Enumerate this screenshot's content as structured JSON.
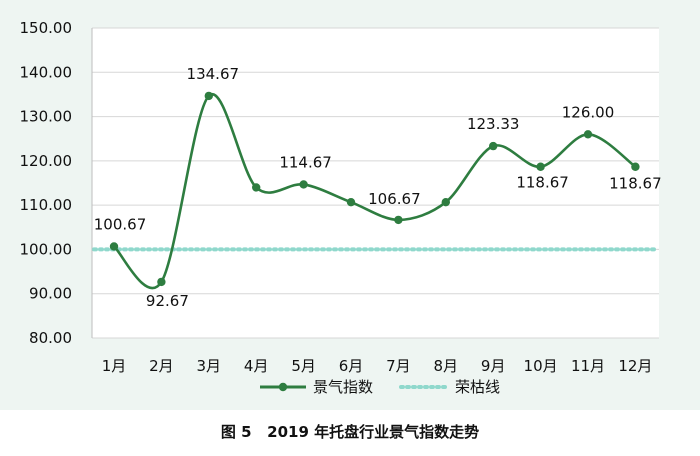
{
  "caption": "图 5   2019 年托盘行业景气指数走势",
  "colors": {
    "panel_background": "#eef5f2",
    "plot_background": "#ffffff",
    "grid": "#d7d7d7",
    "series_line": "#2e7d40",
    "prosperity_line": "#8fd8cc",
    "text": "#111111"
  },
  "chart_data": {
    "type": "line",
    "categories": [
      "1月",
      "2月",
      "3月",
      "4月",
      "5月",
      "6月",
      "7月",
      "8月",
      "9月",
      "10月",
      "11月",
      "12月"
    ],
    "y_ticks": [
      "80.00",
      "90.00",
      "100.00",
      "110.00",
      "120.00",
      "130.00",
      "140.00",
      "150.00"
    ],
    "ylim": [
      80,
      150
    ],
    "grid": true,
    "legend_position": "bottom",
    "series": [
      {
        "name": "景气指数",
        "values": [
          100.67,
          92.67,
          134.67,
          114.0,
          114.67,
          110.67,
          106.67,
          110.67,
          123.33,
          118.67,
          126.0,
          118.67
        ],
        "data_labels": [
          "100.67",
          "92.67",
          "134.67",
          null,
          "114.67",
          null,
          "106.67",
          null,
          "123.33",
          "118.67",
          "126.00",
          "118.67"
        ],
        "style": "solid-smooth-with-markers",
        "color": "#2e7d40"
      },
      {
        "name": "荣枯线",
        "values": [
          100,
          100,
          100,
          100,
          100,
          100,
          100,
          100,
          100,
          100,
          100,
          100
        ],
        "style": "dotted",
        "color": "#8fd8cc"
      }
    ]
  }
}
